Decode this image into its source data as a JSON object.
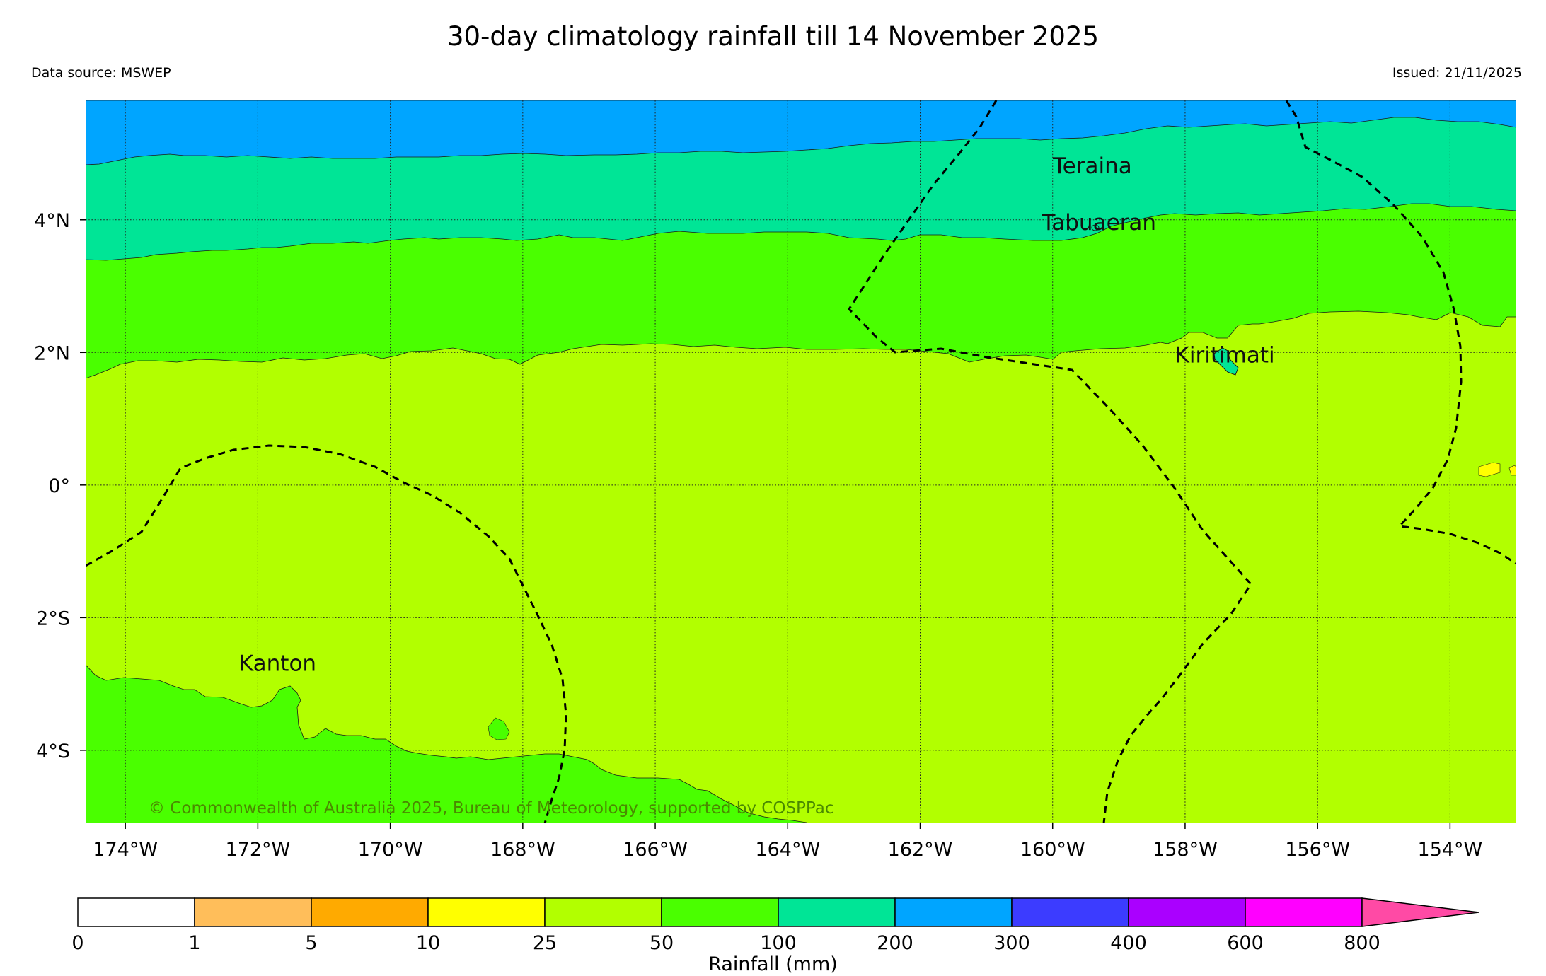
{
  "header": {
    "title": "30-day climatology rainfall till 14 November 2025",
    "data_source": "Data source: MSWEP",
    "issued": "Issued: 21/11/2025"
  },
  "map": {
    "lon_range": [
      -174.6,
      -153.0
    ],
    "lat_range": [
      -5.1,
      5.8
    ],
    "lon_ticks": [
      -174,
      -172,
      -170,
      -168,
      -166,
      -164,
      -162,
      -160,
      -158,
      -156,
      -154
    ],
    "lon_tick_labels": [
      "174°W",
      "172°W",
      "170°W",
      "168°W",
      "166°W",
      "164°W",
      "162°W",
      "160°W",
      "158°W",
      "156°W",
      "154°W"
    ],
    "lat_ticks": [
      4,
      2,
      0,
      -2,
      -4
    ],
    "lat_tick_labels": [
      "4°N",
      "2°N",
      "0°",
      "2°S",
      "4°S"
    ],
    "places": [
      {
        "name": "Teraina",
        "lon": -159.4,
        "lat": 4.7
      },
      {
        "name": "Tabuaeran",
        "lon": -159.3,
        "lat": 3.85
      },
      {
        "name": "Kiritimati",
        "lon": -157.4,
        "lat": 1.85
      },
      {
        "name": "Kanton",
        "lon": -171.7,
        "lat": -2.8
      }
    ],
    "copyright": "© Commonwealth of Australia 2025, Bureau of Meteorology, supported by COSPPac",
    "colors": {
      "band_200_300": "#00a5ff",
      "band_100_200": "#00e596",
      "band_50_100": "#4aff00",
      "band_25_50": "#b2ff00",
      "band_10_25": "#ffff00"
    }
  },
  "colorbar": {
    "label": "Rainfall (mm)",
    "tick_labels": [
      "0",
      "1",
      "5",
      "10",
      "25",
      "50",
      "100",
      "200",
      "300",
      "400",
      "600",
      "800"
    ],
    "colors": [
      "#ffffff",
      "#ffbe5a",
      "#ffaa00",
      "#ffff00",
      "#b2ff00",
      "#4aff00",
      "#00e596",
      "#00a5ff",
      "#3c3cff",
      "#aa00ff",
      "#ff00ff"
    ],
    "extend_color": "#ff4aa5"
  }
}
